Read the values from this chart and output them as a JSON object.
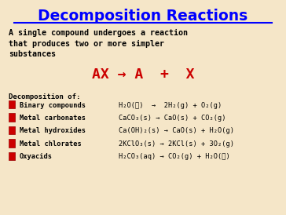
{
  "title": "Decomposition Reactions",
  "title_color": "#0000FF",
  "bg_color": "#F5E6C8",
  "subtitle_line1": "A single compound undergoes a reaction",
  "subtitle_line2": "that produces two or more simpler",
  "subtitle_line3": "substances",
  "subtitle_color": "#000000",
  "formula": "AX → A  +  X",
  "formula_color": "#CC0000",
  "label_color": "#000000",
  "bullet_color": "#CC0000",
  "section_header": "Decomposition of:",
  "categories": [
    "Binary compounds",
    "Metal carbonates",
    "Metal hydroxides",
    "Metal chlorates",
    "Oxyacids"
  ],
  "equations": [
    "H₂O(ℓ)  →  2H₂(g) + O₂(g)",
    "CaCO₃(s) → CaO(s) + CO₂(g)",
    "Ca(OH)₂(s) → CaO(s) + H₂O(g)",
    "2KClO₃(s) → 2KCl(s) + 3O₂(g)",
    "H₂CO₃(aq) → CO₂(g) + H₂O(ℓ)"
  ]
}
